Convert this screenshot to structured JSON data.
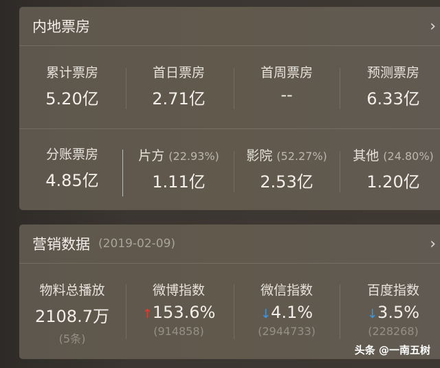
{
  "box_office": {
    "title": "内地票房",
    "row1": [
      {
        "label": "累计票房",
        "value": "5.20亿"
      },
      {
        "label": "首日票房",
        "value": "2.71亿"
      },
      {
        "label": "首周票房",
        "value": "--"
      },
      {
        "label": "预测票房",
        "value": "6.33亿"
      }
    ],
    "split": {
      "label": "分账票房",
      "value": "4.85亿"
    },
    "row2": [
      {
        "label": "片方",
        "pct": "(22.93%)",
        "value": "1.11亿"
      },
      {
        "label": "影院",
        "pct": "(52.27%)",
        "value": "2.53亿"
      },
      {
        "label": "其他",
        "pct": "(24.80%)",
        "value": "1.20亿"
      }
    ]
  },
  "marketing": {
    "title": "营销数据",
    "date": "(2019-02-09)",
    "items": [
      {
        "label": "物料总播放",
        "value": "2108.7万",
        "sub": "(5条)"
      },
      {
        "label": "微博指数",
        "trend": "up",
        "value": "153.6%",
        "sub": "(914858)"
      },
      {
        "label": "微信指数",
        "trend": "down",
        "value": "4.1%",
        "sub": "(2944733)"
      },
      {
        "label": "百度指数",
        "trend": "down",
        "value": "3.5%",
        "sub": "(228268)"
      }
    ]
  },
  "arrows": {
    "up": "↑",
    "down": "↓",
    "chevron": "›"
  },
  "watermark": "头条 @一南五树"
}
